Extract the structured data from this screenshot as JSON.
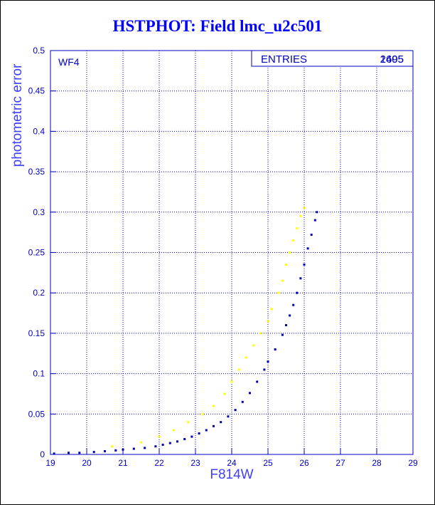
{
  "chart_data": {
    "type": "scatter",
    "title": "HSTPHOT: Field lmc_u2c501",
    "xlabel": "F814W",
    "ylabel": "photometric error",
    "panel_label": "WF4",
    "stats": {
      "label": "ENTRIES",
      "values": [
        "2495",
        "1605"
      ]
    },
    "xlim": [
      19,
      29
    ],
    "ylim": [
      0,
      0.5
    ],
    "xticks": [
      "19",
      "20",
      "21",
      "22",
      "23",
      "24",
      "25",
      "26",
      "27",
      "28",
      "29"
    ],
    "yticks": [
      "0",
      "0.05",
      "0.1",
      "0.15",
      "0.2",
      "0.25",
      "0.3",
      "0.35",
      "0.4",
      "0.45",
      "0.5"
    ],
    "grid": true,
    "colors": {
      "series_main": "#0000b0",
      "series_secondary": "#ffff00",
      "axes": "#0000c0",
      "title": "#0000ff"
    },
    "series": [
      {
        "color": "#0000b0",
        "x": [
          19.1,
          19.5,
          19.8,
          20.2,
          20.5,
          20.8,
          21.0,
          21.3,
          21.6,
          21.9,
          22.1,
          22.3,
          22.5,
          22.7,
          22.9,
          23.1,
          23.3,
          23.5,
          23.7,
          23.9,
          24.1,
          24.3,
          24.5,
          24.7,
          24.9,
          25.0,
          25.2,
          25.4,
          25.5,
          25.6,
          25.7,
          25.8,
          25.9,
          26.0,
          26.1,
          26.2,
          26.3,
          26.35
        ],
        "y": [
          0.001,
          0.002,
          0.002,
          0.003,
          0.004,
          0.005,
          0.006,
          0.007,
          0.008,
          0.01,
          0.012,
          0.014,
          0.016,
          0.019,
          0.022,
          0.026,
          0.03,
          0.035,
          0.04,
          0.047,
          0.055,
          0.065,
          0.076,
          0.09,
          0.105,
          0.115,
          0.13,
          0.148,
          0.16,
          0.172,
          0.185,
          0.2,
          0.218,
          0.235,
          0.255,
          0.272,
          0.29,
          0.3
        ]
      },
      {
        "color": "#ffff00",
        "x": [
          20.7,
          21.5,
          22.0,
          22.4,
          22.8,
          23.2,
          23.5,
          23.8,
          24.0,
          24.2,
          24.4,
          24.6,
          24.8,
          25.0,
          25.1,
          25.3,
          25.4,
          25.5,
          25.6,
          25.7,
          25.8,
          25.9,
          26.0
        ],
        "y": [
          0.01,
          0.015,
          0.022,
          0.03,
          0.04,
          0.05,
          0.06,
          0.075,
          0.09,
          0.105,
          0.12,
          0.135,
          0.15,
          0.165,
          0.18,
          0.2,
          0.215,
          0.235,
          0.25,
          0.265,
          0.28,
          0.295,
          0.305
        ]
      }
    ]
  }
}
